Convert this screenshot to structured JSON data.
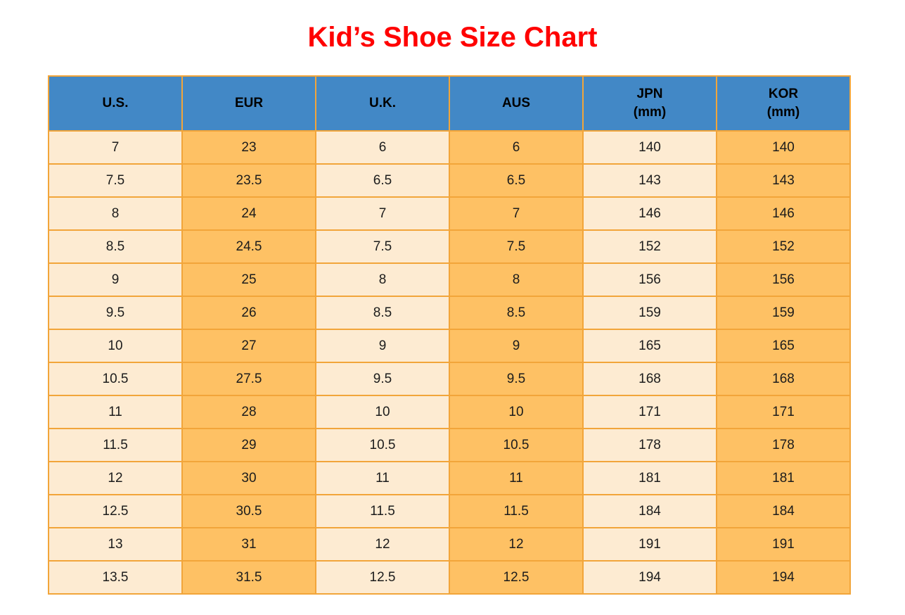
{
  "page": {
    "title": "Kid’s Shoe Size Chart"
  },
  "colors": {
    "title_color": "#FF0000",
    "header_bg": "#4288C6",
    "header_text": "#000000",
    "cell_cream": "#FDEBD2",
    "cell_orange": "#FEC164",
    "border_color": "#F2A53A",
    "cell_text": "#1C1C1C"
  },
  "chart_data": {
    "type": "table",
    "title": "Kid’s Shoe Size Chart",
    "columns": [
      {
        "key": "us",
        "label": "U.S.",
        "sub": ""
      },
      {
        "key": "eur",
        "label": "EUR",
        "sub": ""
      },
      {
        "key": "uk",
        "label": "U.K.",
        "sub": ""
      },
      {
        "key": "aus",
        "label": "AUS",
        "sub": ""
      },
      {
        "key": "jpn",
        "label": "JPN",
        "sub": "(mm)"
      },
      {
        "key": "kor",
        "label": "KOR",
        "sub": "(mm)"
      }
    ],
    "rows": [
      [
        "7",
        "23",
        "6",
        "6",
        "140",
        "140"
      ],
      [
        "7.5",
        "23.5",
        "6.5",
        "6.5",
        "143",
        "143"
      ],
      [
        "8",
        "24",
        "7",
        "7",
        "146",
        "146"
      ],
      [
        "8.5",
        "24.5",
        "7.5",
        "7.5",
        "152",
        "152"
      ],
      [
        "9",
        "25",
        "8",
        "8",
        "156",
        "156"
      ],
      [
        "9.5",
        "26",
        "8.5",
        "8.5",
        "159",
        "159"
      ],
      [
        "10",
        "27",
        "9",
        "9",
        "165",
        "165"
      ],
      [
        "10.5",
        "27.5",
        "9.5",
        "9.5",
        "168",
        "168"
      ],
      [
        "11",
        "28",
        "10",
        "10",
        "171",
        "171"
      ],
      [
        "11.5",
        "29",
        "10.5",
        "10.5",
        "178",
        "178"
      ],
      [
        "12",
        "30",
        "11",
        "11",
        "181",
        "181"
      ],
      [
        "12.5",
        "30.5",
        "11.5",
        "11.5",
        "184",
        "184"
      ],
      [
        "13",
        "31",
        "12",
        "12",
        "191",
        "191"
      ],
      [
        "13.5",
        "31.5",
        "12.5",
        "12.5",
        "194",
        "194"
      ]
    ]
  }
}
